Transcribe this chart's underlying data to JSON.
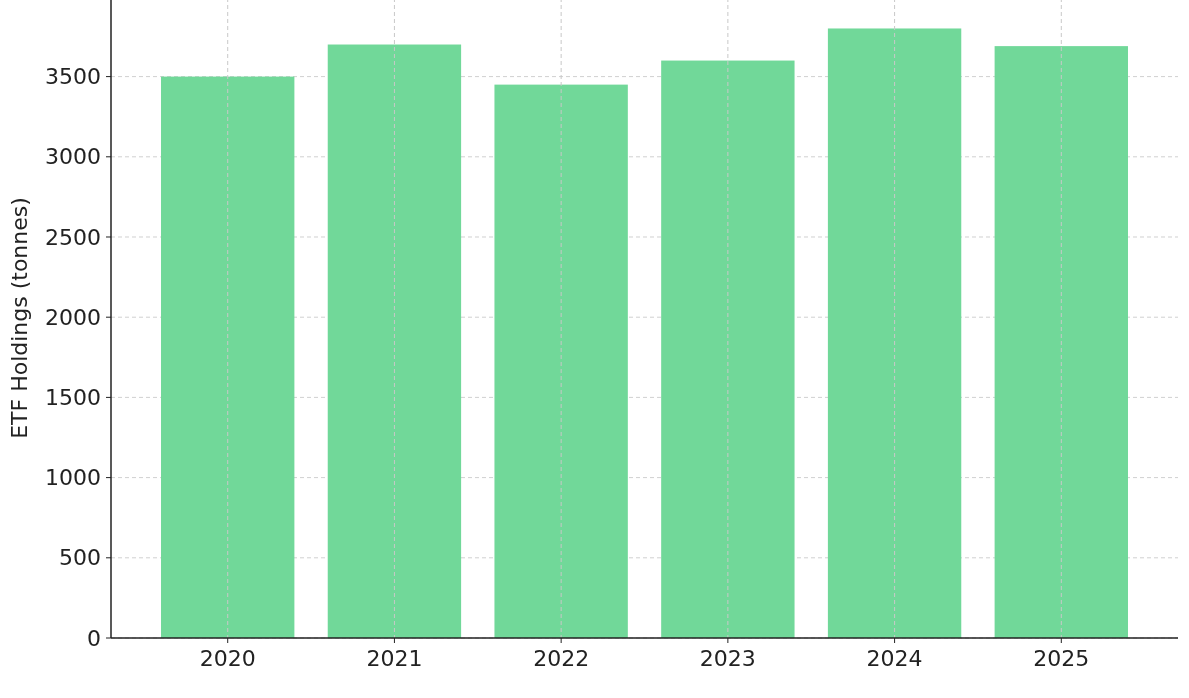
{
  "chart_data": {
    "type": "bar",
    "ylabel": "ETF Holdings (tonnes)",
    "categories": [
      "2020",
      "2021",
      "2022",
      "2023",
      "2024",
      "2025"
    ],
    "values": [
      3500,
      3700,
      3450,
      3600,
      3800,
      3690
    ],
    "color": "#71d899",
    "ylim": [
      0,
      3990
    ],
    "yticks": [
      0,
      500,
      1000,
      1500,
      2000,
      2500,
      3000,
      3500
    ],
    "grid": true
  }
}
